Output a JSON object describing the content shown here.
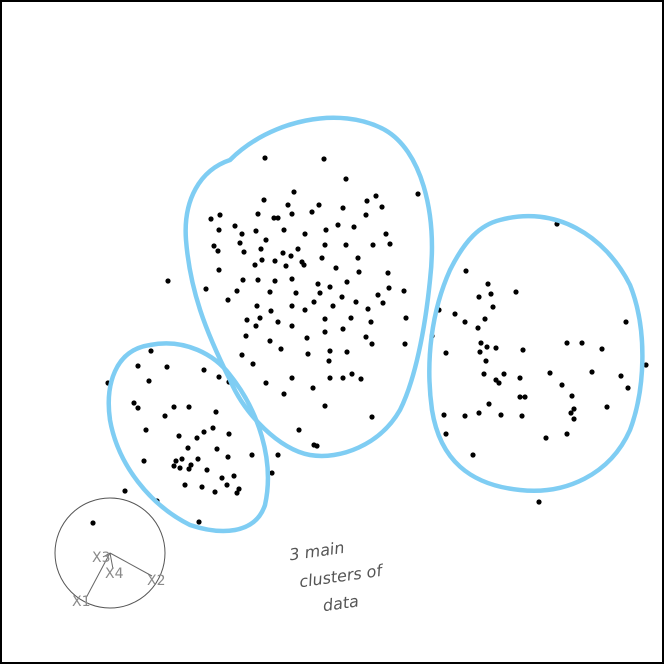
{
  "projection": {
    "axis_labels": [
      "X3",
      "X4",
      "X2",
      "X1"
    ]
  },
  "annotation": {
    "lines": [
      "3 main",
      "clusters of",
      "data"
    ]
  },
  "colors": {
    "cluster_outline": "#7fcdf3",
    "points": "#000000",
    "projection_labels": "#8a8a8a"
  },
  "cluster_count": 3
}
